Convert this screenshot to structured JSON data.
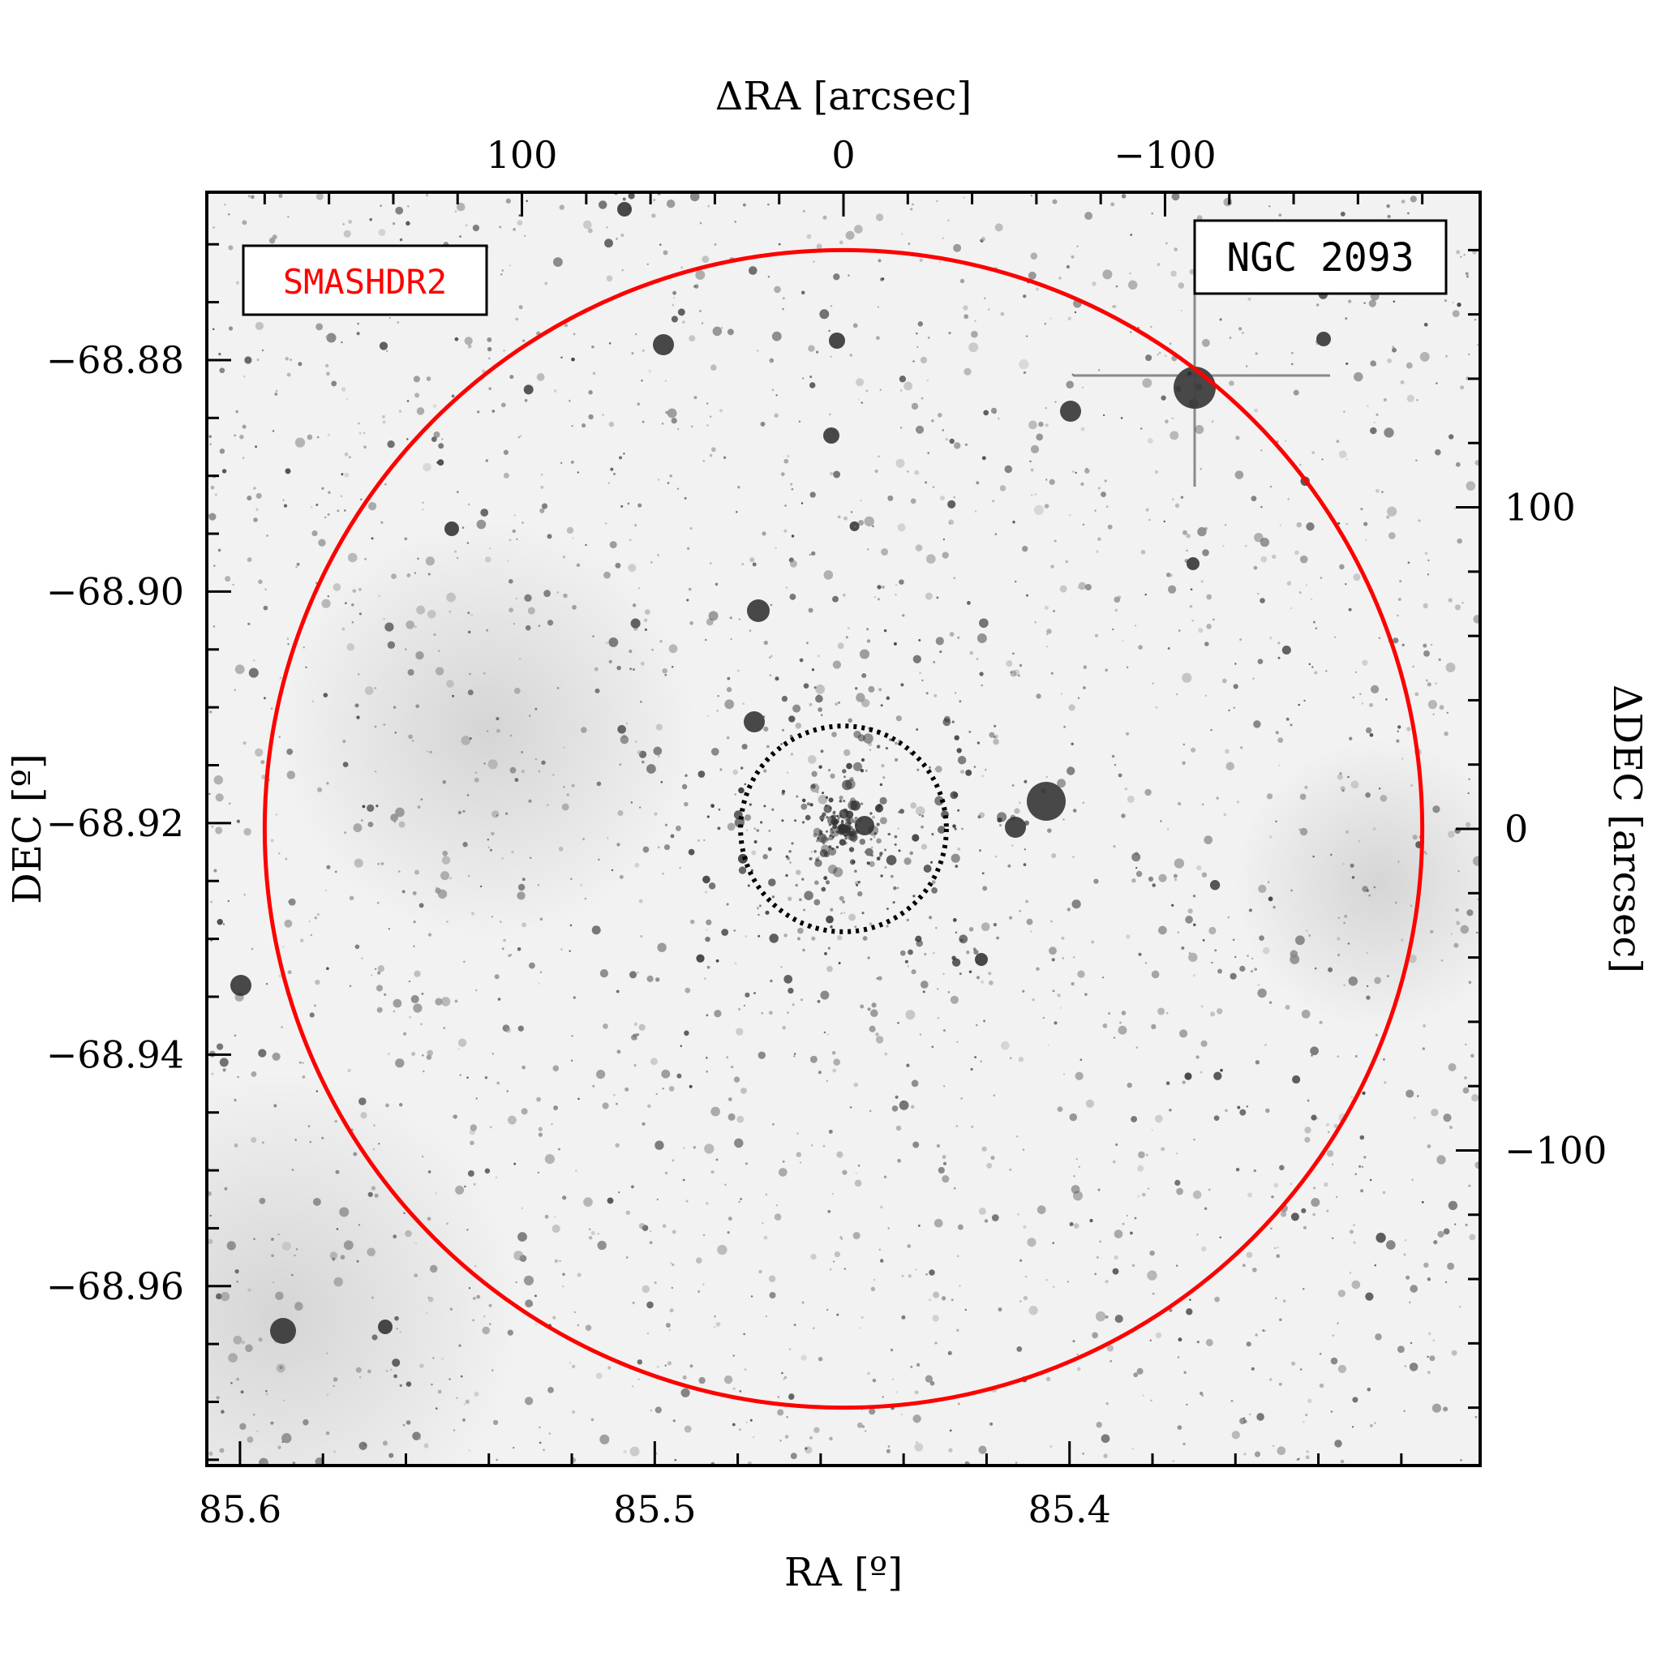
{
  "chart_data": {
    "type": "image",
    "image_kind": "greyscale sky image (inverted)",
    "survey_label": "SMASHDR2",
    "object_label": "NGC 2093",
    "colors": {
      "survey_label": "#ff0000",
      "outer_circle": "#ff0000",
      "inner_circle": "#000000",
      "frame": "#000000",
      "background": "#f2f2f2"
    },
    "axes": {
      "bottom": {
        "label": "RA [º]",
        "range": [
          85.608,
          85.301
        ],
        "ticks": [
          {
            "value": 85.6,
            "label": "85.6"
          },
          {
            "value": 85.5,
            "label": "85.5"
          },
          {
            "value": 85.4,
            "label": "85.4"
          }
        ]
      },
      "left": {
        "label": "DEC [º]",
        "range": [
          -68.9755,
          -68.8655
        ],
        "ticks": [
          {
            "value": -68.88,
            "label": "−68.88"
          },
          {
            "value": -68.9,
            "label": "−68.90"
          },
          {
            "value": -68.92,
            "label": "−68.92"
          },
          {
            "value": -68.94,
            "label": "−68.94"
          },
          {
            "value": -68.96,
            "label": "−68.96"
          }
        ]
      },
      "top": {
        "label": "ΔRA [arcsec]",
        "range": [
          198,
          -198
        ],
        "ticks": [
          {
            "value": 100,
            "label": "100"
          },
          {
            "value": 0,
            "label": "0"
          },
          {
            "value": -100,
            "label": "−100"
          }
        ]
      },
      "right": {
        "label": "ΔDEC [arcsec]",
        "range": [
          -198,
          198
        ],
        "ticks": [
          {
            "value": 100,
            "label": "100"
          },
          {
            "value": 0,
            "label": "0"
          },
          {
            "value": -100,
            "label": "−100"
          }
        ]
      }
    },
    "circles": [
      {
        "name": "outer",
        "center_arcsec": [
          0,
          0
        ],
        "radius_arcsec": 180,
        "style": "solid"
      },
      {
        "name": "inner",
        "center_arcsec": [
          0,
          0
        ],
        "radius_arcsec": 32,
        "style": "dotted"
      }
    ]
  }
}
